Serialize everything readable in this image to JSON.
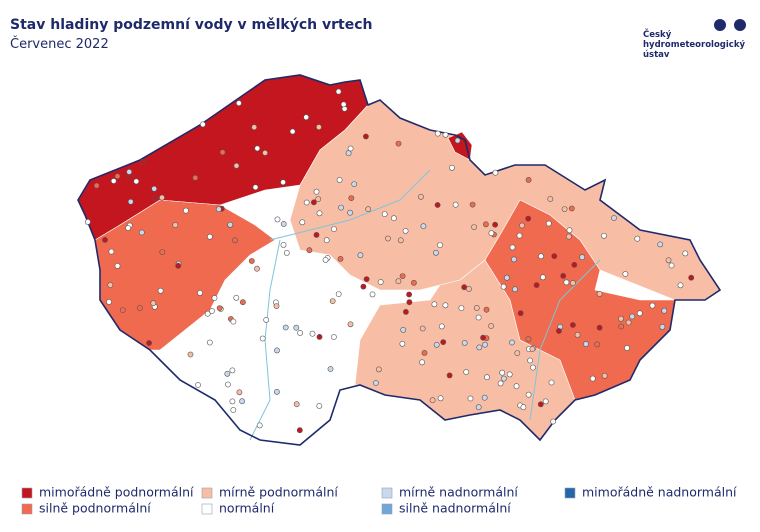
{
  "header": {
    "title": "Stav hladiny podzemní vody v mělkých vrtech",
    "subtitle": "Červenec 2022"
  },
  "logo": {
    "lines": [
      "Český",
      "hydrometeorologický",
      "ústav"
    ]
  },
  "legend": [
    {
      "label": "mimořádně podnormální",
      "color": "#c3161f"
    },
    {
      "label": "silně podnormální",
      "color": "#f06a4f"
    },
    {
      "label": "mírně podnormální",
      "color": "#f8bea5"
    },
    {
      "label": "normální",
      "color": "#ffffff"
    },
    {
      "label": "mírně nadnormální",
      "color": "#c9d8ec"
    },
    {
      "label": "silně nadnormální",
      "color": "#6fa7d8"
    },
    {
      "label": "mimořádně nadnormální",
      "color": "#2366aa"
    }
  ]
}
